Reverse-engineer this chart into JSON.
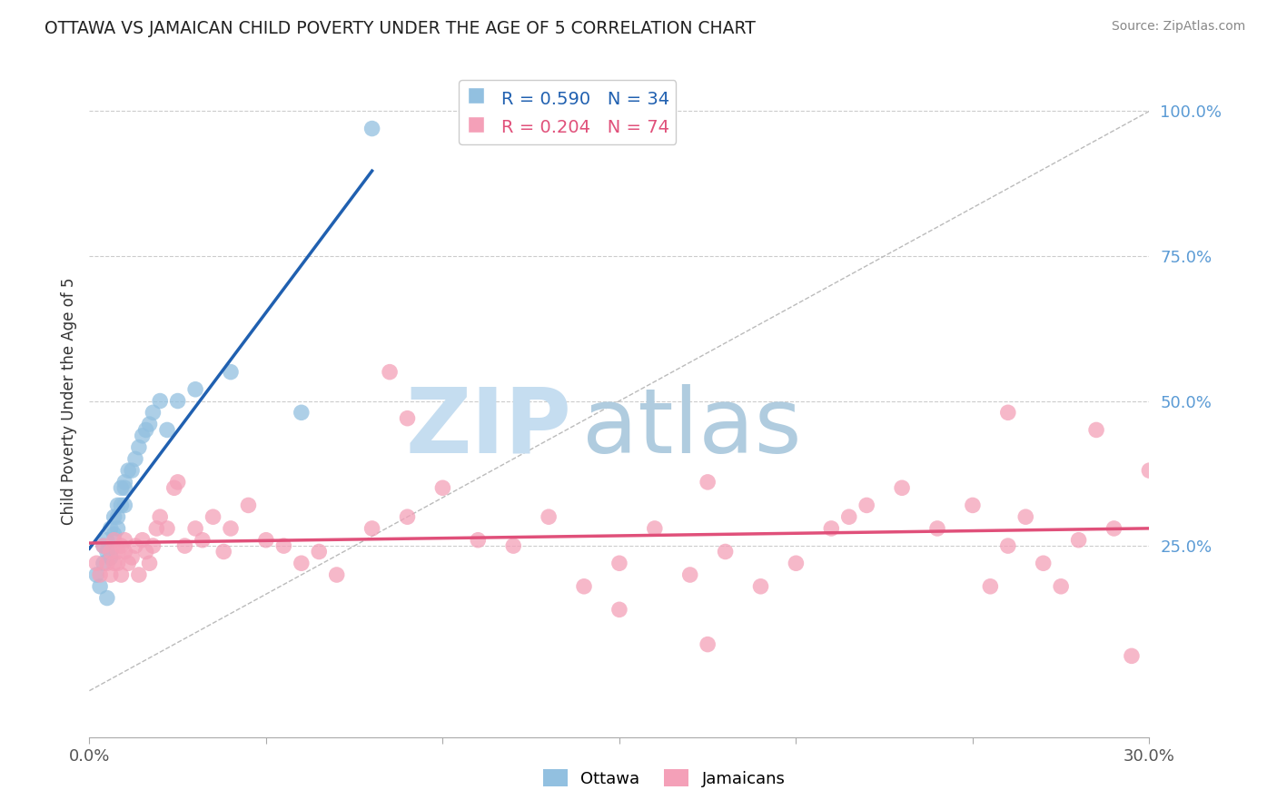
{
  "title": "OTTAWA VS JAMAICAN CHILD POVERTY UNDER THE AGE OF 5 CORRELATION CHART",
  "source": "Source: ZipAtlas.com",
  "ylabel": "Child Poverty Under the Age of 5",
  "right_ytick_labels": [
    "100.0%",
    "75.0%",
    "50.0%",
    "25.0%"
  ],
  "right_ytick_values": [
    1.0,
    0.75,
    0.5,
    0.25
  ],
  "xlim": [
    0.0,
    0.3
  ],
  "ylim": [
    -0.08,
    1.08
  ],
  "legend_label1": "Ottawa",
  "legend_label2": "Jamaicans",
  "ottawa_color": "#92c0e0",
  "jamaican_color": "#f4a0b8",
  "ottawa_line_color": "#2060b0",
  "jamaican_line_color": "#e0507a",
  "right_axis_color": "#5b9bd5",
  "watermark_zip_color": "#c5ddf0",
  "watermark_atlas_color": "#b0ccdf",
  "grid_color": "#cccccc",
  "ottawa_x": [
    0.002,
    0.003,
    0.004,
    0.004,
    0.005,
    0.005,
    0.005,
    0.006,
    0.006,
    0.007,
    0.007,
    0.008,
    0.008,
    0.008,
    0.009,
    0.009,
    0.01,
    0.01,
    0.01,
    0.011,
    0.012,
    0.013,
    0.014,
    0.015,
    0.016,
    0.017,
    0.018,
    0.02,
    0.022,
    0.025,
    0.03,
    0.04,
    0.06,
    0.08
  ],
  "ottawa_y": [
    0.2,
    0.18,
    0.22,
    0.25,
    0.24,
    0.26,
    0.16,
    0.28,
    0.23,
    0.27,
    0.3,
    0.28,
    0.3,
    0.32,
    0.32,
    0.35,
    0.35,
    0.32,
    0.36,
    0.38,
    0.38,
    0.4,
    0.42,
    0.44,
    0.45,
    0.46,
    0.48,
    0.5,
    0.45,
    0.5,
    0.52,
    0.55,
    0.48,
    0.97
  ],
  "jamaican_x": [
    0.002,
    0.003,
    0.004,
    0.005,
    0.006,
    0.006,
    0.007,
    0.007,
    0.008,
    0.008,
    0.009,
    0.009,
    0.01,
    0.01,
    0.011,
    0.012,
    0.013,
    0.014,
    0.015,
    0.016,
    0.017,
    0.018,
    0.019,
    0.02,
    0.022,
    0.024,
    0.025,
    0.027,
    0.03,
    0.032,
    0.035,
    0.038,
    0.04,
    0.045,
    0.05,
    0.055,
    0.06,
    0.065,
    0.07,
    0.08,
    0.085,
    0.09,
    0.1,
    0.11,
    0.12,
    0.13,
    0.14,
    0.15,
    0.16,
    0.17,
    0.175,
    0.18,
    0.19,
    0.2,
    0.21,
    0.215,
    0.22,
    0.23,
    0.24,
    0.25,
    0.255,
    0.26,
    0.265,
    0.27,
    0.275,
    0.28,
    0.285,
    0.29,
    0.295,
    0.3,
    0.175,
    0.26,
    0.09,
    0.15
  ],
  "jamaican_y": [
    0.22,
    0.2,
    0.25,
    0.22,
    0.2,
    0.24,
    0.22,
    0.26,
    0.22,
    0.24,
    0.25,
    0.2,
    0.24,
    0.26,
    0.22,
    0.23,
    0.25,
    0.2,
    0.26,
    0.24,
    0.22,
    0.25,
    0.28,
    0.3,
    0.28,
    0.35,
    0.36,
    0.25,
    0.28,
    0.26,
    0.3,
    0.24,
    0.28,
    0.32,
    0.26,
    0.25,
    0.22,
    0.24,
    0.2,
    0.28,
    0.55,
    0.3,
    0.35,
    0.26,
    0.25,
    0.3,
    0.18,
    0.22,
    0.28,
    0.2,
    0.36,
    0.24,
    0.18,
    0.22,
    0.28,
    0.3,
    0.32,
    0.35,
    0.28,
    0.32,
    0.18,
    0.25,
    0.3,
    0.22,
    0.18,
    0.26,
    0.45,
    0.28,
    0.06,
    0.38,
    0.08,
    0.48,
    0.47,
    0.14
  ]
}
